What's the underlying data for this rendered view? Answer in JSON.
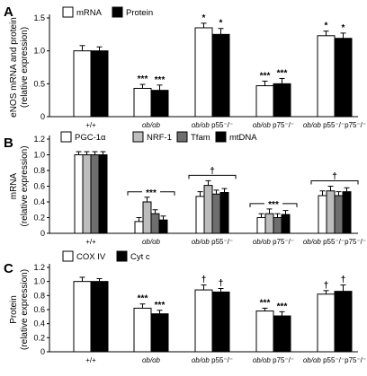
{
  "chart_data": [
    {
      "panel": "A",
      "type": "bar",
      "ylabel": "eNOS mRNA and protein\n(relative expression)",
      "ylim": [
        0,
        1.5
      ],
      "yticks": [
        "0",
        "0.5",
        "1.0",
        "1.5"
      ],
      "ytick_values": [
        0,
        0.5,
        1.0,
        1.5
      ],
      "categories": [
        "+/+",
        "ob/ob",
        "ob/ob p55⁻/⁻",
        "ob/ob p75⁻/⁻",
        "ob/ob p55⁻/⁻p75⁻/⁻"
      ],
      "legend_position": "top-left",
      "series": [
        {
          "name": "mRNA",
          "color": "#ffffff",
          "values": [
            1.0,
            0.43,
            1.35,
            0.47,
            1.23
          ],
          "errors": [
            0.08,
            0.06,
            0.07,
            0.07,
            0.07
          ]
        },
        {
          "name": "Protein",
          "color": "#000000",
          "values": [
            1.0,
            0.4,
            1.25,
            0.5,
            1.19
          ],
          "errors": [
            0.06,
            0.08,
            0.09,
            0.08,
            0.08
          ]
        }
      ],
      "annotations": [
        {
          "category": 1,
          "series": 0,
          "text": "***"
        },
        {
          "category": 1,
          "series": 1,
          "text": "***"
        },
        {
          "category": 2,
          "series": 0,
          "text": "*"
        },
        {
          "category": 2,
          "series": 1,
          "text": "*"
        },
        {
          "category": 3,
          "series": 0,
          "text": "***"
        },
        {
          "category": 3,
          "series": 1,
          "text": "***"
        },
        {
          "category": 4,
          "series": 0,
          "text": "*"
        },
        {
          "category": 4,
          "series": 1,
          "text": "*"
        }
      ]
    },
    {
      "panel": "B",
      "type": "bar",
      "ylabel": "mRNA\n(relative expression)",
      "ylim": [
        0,
        1.2
      ],
      "yticks": [
        "0",
        "0.2",
        "0.4",
        "0.6",
        "0.8",
        "1.0",
        "1.2"
      ],
      "ytick_values": [
        0,
        0.2,
        0.4,
        0.6,
        0.8,
        1.0,
        1.2
      ],
      "categories": [
        "+/+",
        "ob/ob",
        "ob/ob p55⁻/⁻",
        "ob/ob p75⁻/⁻",
        "ob/ob p55⁻/⁻p75⁻/⁻"
      ],
      "legend_position": "top-left",
      "series": [
        {
          "name": "PGC-1α",
          "color": "#ffffff",
          "values": [
            1.0,
            0.15,
            0.47,
            0.2,
            0.48
          ],
          "errors": [
            0.04,
            0.05,
            0.06,
            0.05,
            0.06
          ]
        },
        {
          "name": "NRF-1",
          "color": "#bdbdbd",
          "values": [
            1.0,
            0.4,
            0.61,
            0.25,
            0.54
          ],
          "errors": [
            0.04,
            0.06,
            0.06,
            0.06,
            0.06
          ]
        },
        {
          "name": "Tfam",
          "color": "#6e6e6e",
          "values": [
            1.0,
            0.25,
            0.5,
            0.2,
            0.48
          ],
          "errors": [
            0.04,
            0.05,
            0.05,
            0.05,
            0.05
          ]
        },
        {
          "name": "mtDNA",
          "color": "#000000",
          "values": [
            1.0,
            0.17,
            0.52,
            0.24,
            0.53
          ],
          "errors": [
            0.04,
            0.05,
            0.05,
            0.05,
            0.05
          ]
        }
      ],
      "group_annotations": [
        {
          "category": 1,
          "text": "***"
        },
        {
          "category": 2,
          "text": "†"
        },
        {
          "category": 3,
          "text": "***"
        },
        {
          "category": 4,
          "text": "†"
        }
      ]
    },
    {
      "panel": "C",
      "type": "bar",
      "ylabel": "Protein\n(relative expression)",
      "ylim": [
        0,
        1.2
      ],
      "yticks": [
        "0",
        "0.2",
        "0.4",
        "0.6",
        "0.8",
        "1.0",
        "1.2"
      ],
      "ytick_values": [
        0,
        0.2,
        0.4,
        0.6,
        0.8,
        1.0,
        1.2
      ],
      "categories": [
        "+/+",
        "ob/ob",
        "ob/ob p55⁻/⁻",
        "ob/ob p75⁻/⁻",
        "ob/ob p55⁻/⁻p75⁻/⁻"
      ],
      "legend_position": "top-left",
      "series": [
        {
          "name": "COX IV",
          "color": "#ffffff",
          "values": [
            1.0,
            0.62,
            0.88,
            0.58,
            0.82
          ],
          "errors": [
            0.06,
            0.06,
            0.07,
            0.04,
            0.05
          ]
        },
        {
          "name": "Cyt c",
          "color": "#000000",
          "values": [
            1.0,
            0.54,
            0.85,
            0.51,
            0.86
          ],
          "errors": [
            0.04,
            0.05,
            0.05,
            0.06,
            0.09
          ]
        }
      ],
      "annotations": [
        {
          "category": 1,
          "series": 0,
          "text": "***"
        },
        {
          "category": 1,
          "series": 1,
          "text": "***"
        },
        {
          "category": 2,
          "series": 0,
          "text": "†"
        },
        {
          "category": 2,
          "series": 1,
          "text": "†"
        },
        {
          "category": 3,
          "series": 0,
          "text": "***"
        },
        {
          "category": 3,
          "series": 1,
          "text": "***"
        },
        {
          "category": 4,
          "series": 0,
          "text": "†"
        },
        {
          "category": 4,
          "series": 1,
          "text": "†"
        }
      ]
    }
  ]
}
